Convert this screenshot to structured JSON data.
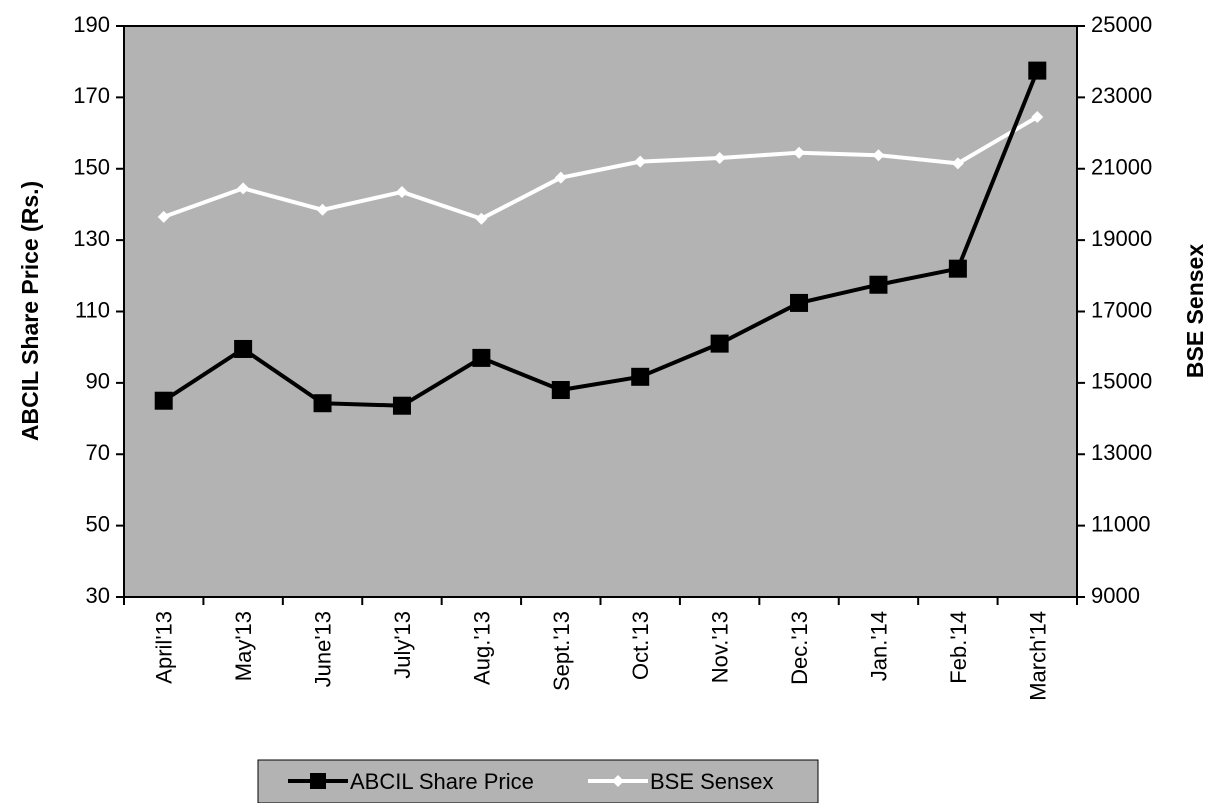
{
  "chart_data": {
    "type": "line",
    "categories": [
      "April'13",
      "May'13",
      "June'13",
      "July'13",
      "Aug.'13",
      "Sept.'13",
      "Oct.'13",
      "Nov.'13",
      "Dec.'13",
      "Jan.'14",
      "Feb.'14",
      "March'14"
    ],
    "series": [
      {
        "name": "ABCIL Share Price",
        "axis": "left",
        "color": "#000000",
        "marker": "square",
        "values": [
          85,
          99.5,
          84.3,
          83.6,
          97,
          88,
          91.7,
          101,
          112.4,
          117.5,
          122,
          177.5
        ]
      },
      {
        "name": "BSE Sensex",
        "axis": "right",
        "color": "#ffffff",
        "marker": "diamond",
        "values": [
          19650,
          20450,
          19850,
          20350,
          19600,
          20750,
          21200,
          21300,
          21450,
          21380,
          21150,
          22450
        ]
      }
    ],
    "ylabel": "ABCIL Share Price (Rs.)",
    "ylim": [
      30,
      190
    ],
    "yticks": [
      30,
      50,
      70,
      90,
      110,
      130,
      150,
      170,
      190
    ],
    "y2label": "BSE Sensex",
    "y2lim": [
      9000,
      25000
    ],
    "y2ticks": [
      9000,
      11000,
      13000,
      15000,
      17000,
      19000,
      21000,
      23000,
      25000
    ],
    "plot_background": "#b3b3b3",
    "grid": false,
    "legend_position": "bottom"
  }
}
